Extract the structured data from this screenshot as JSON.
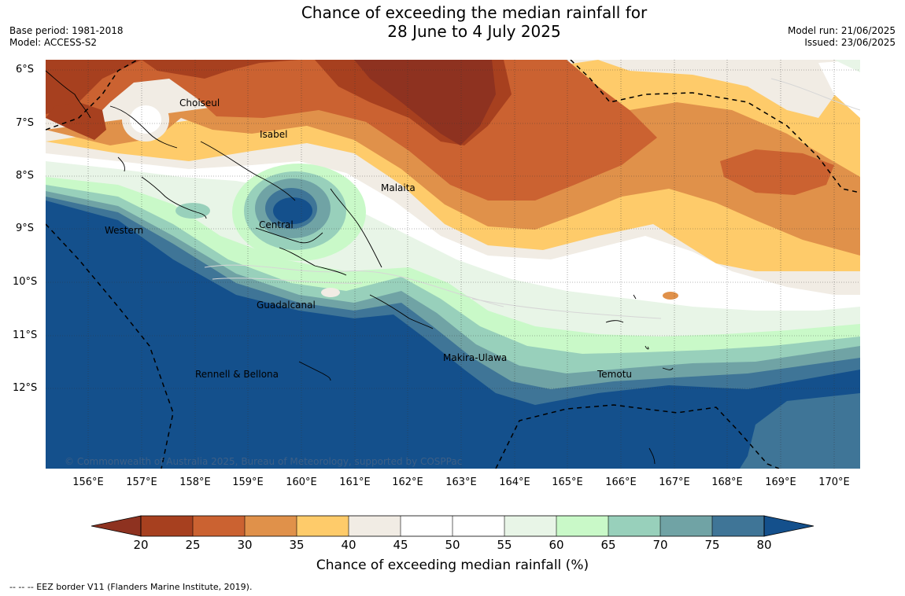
{
  "title": {
    "line1": "Chance of exceeding the median rainfall for",
    "line2": "28 June to 4 July 2025"
  },
  "meta_left": {
    "base_period": "Base period: 1981-2018",
    "model": "Model: ACCESS-S2"
  },
  "meta_right": {
    "model_run": "Model run: 21/06/2025",
    "issued": "Issued: 23/06/2025"
  },
  "map": {
    "lat_labels": [
      "6°S",
      "7°S",
      "8°S",
      "9°S",
      "10°S",
      "11°S",
      "12°S"
    ],
    "lon_labels": [
      "156°E",
      "157°E",
      "158°E",
      "159°E",
      "160°E",
      "161°E",
      "162°E",
      "163°E",
      "164°E",
      "165°E",
      "166°E",
      "167°E",
      "168°E",
      "169°E",
      "170°E"
    ],
    "regions": {
      "choiseul": "Choiseul",
      "isabel": "Isabel",
      "malaita": "Malaita",
      "western": "Western",
      "central": "Central",
      "guadalcanal": "Guadalcanal",
      "makira_ulawa": "Makira-Ulawa",
      "temotu": "Temotu",
      "rennell_bellona": "Rennell & Bellona"
    },
    "copyright": "© Commonwealth of Australia 2025, Bureau of Meteorology, supported by COSPPac"
  },
  "colorbar": {
    "ticks": [
      "20",
      "25",
      "30",
      "35",
      "40",
      "45",
      "50",
      "55",
      "60",
      "65",
      "70",
      "75",
      "80"
    ],
    "colors": [
      "#a7401f",
      "#cb6231",
      "#e0914a",
      "#fecb6a",
      "#f1ece4",
      "#ffffff",
      "#ffffff",
      "#e8f5e7",
      "#c9f9c8",
      "#98d0bb",
      "#70a3a5",
      "#3f7597",
      "#14508c"
    ],
    "under_color": "#8e3220",
    "over_color": "#14508c",
    "label": "Chance of exceeding median rainfall (%)"
  },
  "eez_note": "--  --  -- EEZ border V11 (Flanders Marine Institute, 2019)."
}
